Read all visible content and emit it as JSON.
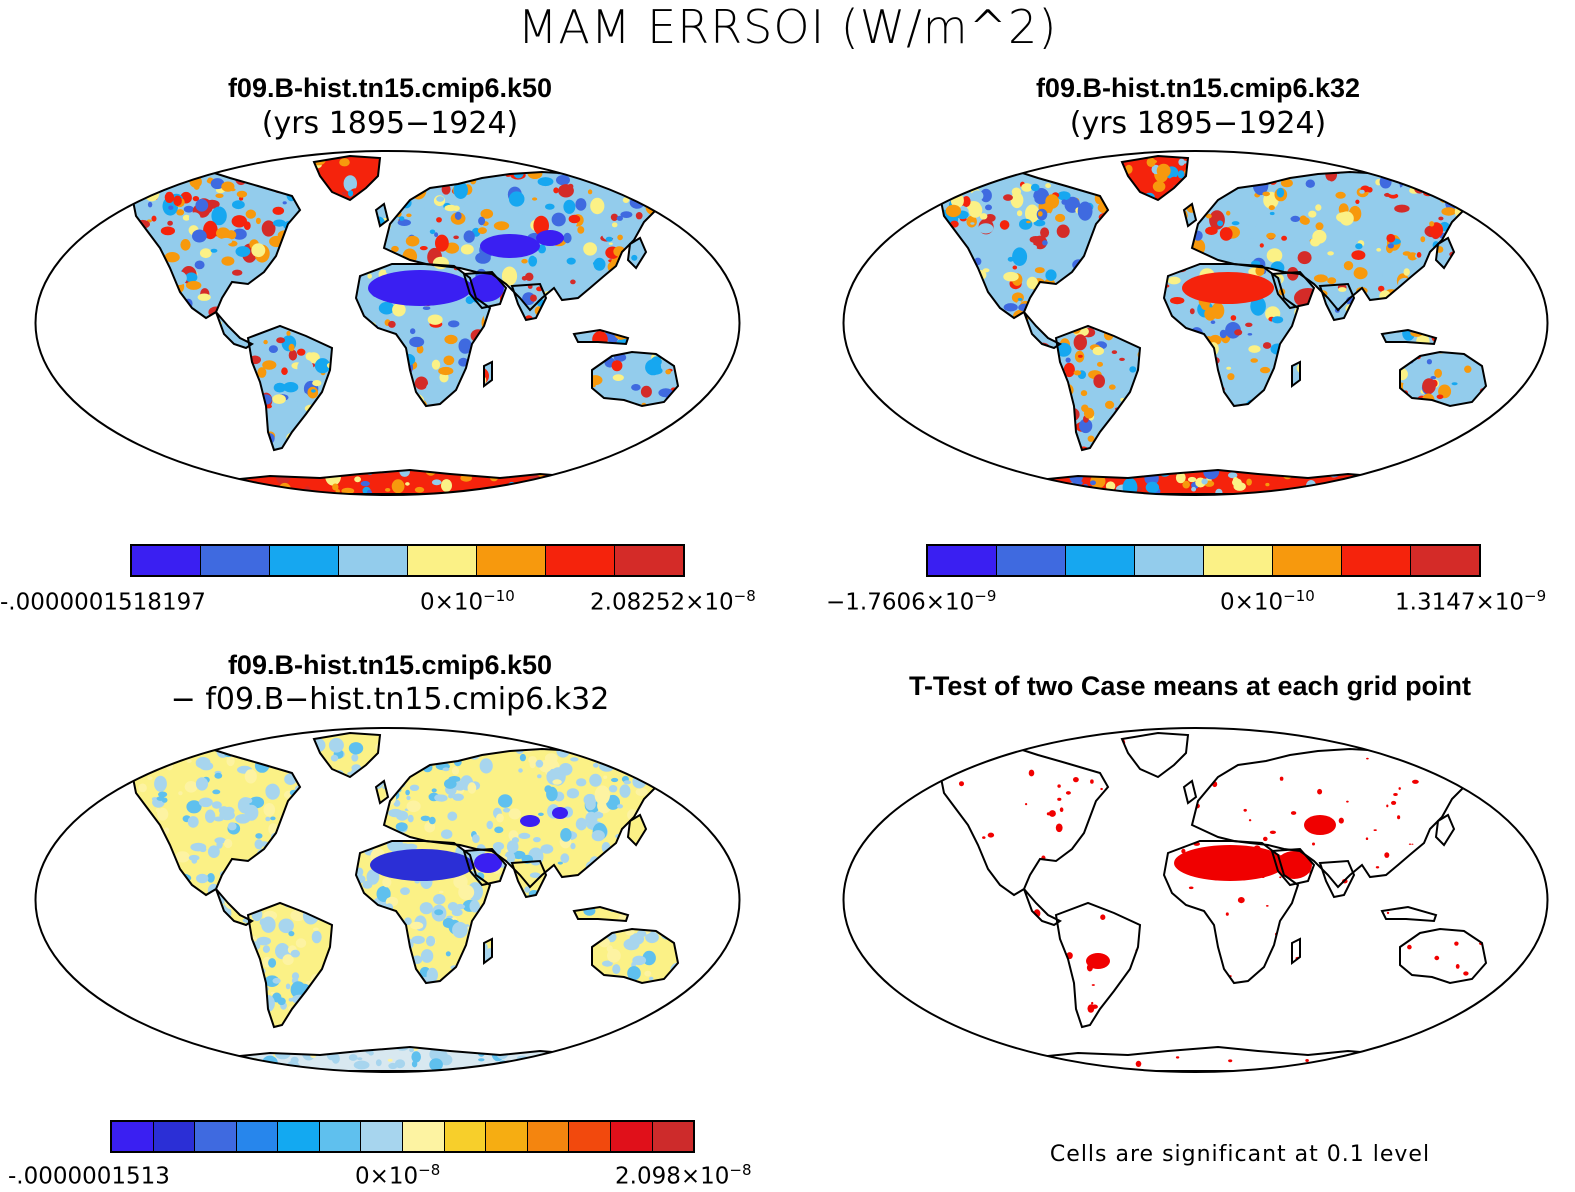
{
  "title": "MAM ERRSOI (W/m^2)",
  "panels": [
    {
      "name": "k50",
      "title": "f09.B-hist.tn15.cmip6.k50",
      "subtitle": "(yrs 1895−1924)"
    },
    {
      "name": "k32",
      "title": "f09.B-hist.tn15.cmip6.k32",
      "subtitle": "(yrs 1895−1924)"
    },
    {
      "name": "diff",
      "title": "f09.B-hist.tn15.cmip6.k50",
      "subtitle": "− f09.B−hist.tn15.cmip6.k32"
    },
    {
      "name": "ttest",
      "title": "T-Test of two Case means at each grid point",
      "footer": "Cells are significant at 0.1 level"
    }
  ],
  "colorbars": [
    {
      "colors": [
        "#3a1ff2",
        "#3f6ae0",
        "#16a7f0",
        "#93ccec",
        "#fbf186",
        "#f7990d",
        "#f5230c",
        "#d42b28"
      ],
      "labels": [
        {
          "base": "-.0000001518197",
          "exp": ""
        },
        {
          "base": "0×10",
          "exp": "−10"
        },
        {
          "base": "2.08252×10",
          "exp": "−8"
        }
      ]
    },
    {
      "colors": [
        "#3a1ff2",
        "#3f6ae0",
        "#16a7f0",
        "#93ccec",
        "#fbf186",
        "#f7990d",
        "#f5230c",
        "#d42b28"
      ],
      "labels": [
        {
          "base": "−1.7606×10",
          "exp": "−9"
        },
        {
          "base": "0×10",
          "exp": "−10"
        },
        {
          "base": "1.3147×10",
          "exp": "−9"
        }
      ]
    },
    {
      "colors": [
        "#3a1ff2",
        "#2b2fd6",
        "#3f6ae0",
        "#2786ec",
        "#13a9f1",
        "#5fc0ee",
        "#a7d5ee",
        "#fdf3a2",
        "#f7cf2b",
        "#f6ad12",
        "#f4850f",
        "#f2490d",
        "#e0101a",
        "#cd2b2b"
      ],
      "labels": [
        {
          "base": "-.0000001513",
          "exp": ""
        },
        {
          "base": "0×10",
          "exp": "−8"
        },
        {
          "base": "2.098×10",
          "exp": "−8"
        }
      ]
    }
  ]
}
